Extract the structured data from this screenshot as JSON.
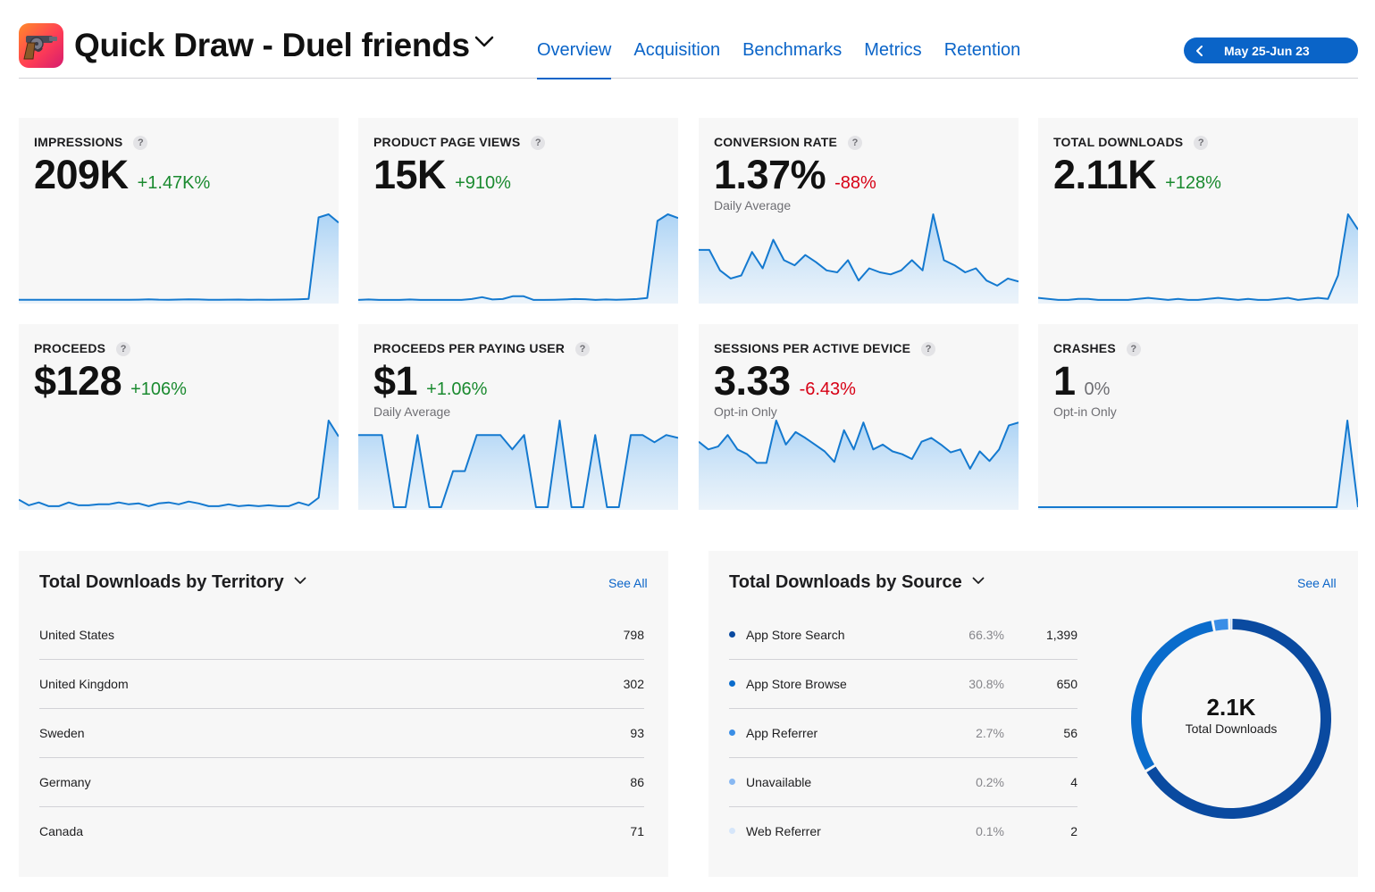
{
  "app": {
    "title": "Quick Draw - Duel friends",
    "icon": "revolver-icon"
  },
  "nav": {
    "tabs": [
      {
        "label": "Overview",
        "active": true
      },
      {
        "label": "Acquisition",
        "active": false
      },
      {
        "label": "Benchmarks",
        "active": false
      },
      {
        "label": "Metrics",
        "active": false
      },
      {
        "label": "Retention",
        "active": false
      }
    ],
    "date_range": "May 25-Jun 23"
  },
  "colors": {
    "accent": "#0a64c8",
    "positive": "#1a8a2f",
    "negative": "#d70015",
    "spark_line": "#1479cf"
  },
  "kpis": [
    {
      "title": "IMPRESSIONS",
      "value": "209K",
      "change": "+1.47K%",
      "trend": "pos",
      "sub": "",
      "series": [
        1,
        1,
        1,
        1,
        1,
        1,
        1,
        1,
        1,
        1,
        1,
        1,
        1.2,
        1.5,
        1.2,
        1.1,
        1.3,
        1.5,
        1.4,
        1.1,
        1,
        1.2,
        1.3,
        1.1,
        1.2,
        1.1,
        1.2,
        1.3,
        1.5,
        2,
        80,
        83,
        75
      ]
    },
    {
      "title": "PRODUCT PAGE VIEWS",
      "value": "15K",
      "change": "+910%",
      "trend": "pos",
      "sub": "",
      "series": [
        1,
        1.5,
        1,
        1,
        1,
        1.5,
        1,
        1,
        1,
        1,
        1,
        2,
        4,
        1.5,
        2,
        5,
        5,
        1,
        1,
        1.2,
        1.5,
        2,
        1.8,
        1,
        1.5,
        1.2,
        1.5,
        2,
        3,
        85,
        92,
        88
      ]
    },
    {
      "title": "CONVERSION RATE",
      "value": "1.37%",
      "change": "-88%",
      "trend": "neg",
      "sub": "Daily Average",
      "series": [
        50,
        50,
        30,
        22,
        25,
        48,
        32,
        60,
        40,
        35,
        45,
        38,
        30,
        28,
        40,
        20,
        32,
        28,
        26,
        30,
        40,
        30,
        85,
        40,
        35,
        28,
        32,
        20,
        15,
        22,
        19
      ]
    },
    {
      "title": "TOTAL DOWNLOADS",
      "value": "2.11K",
      "change": "+128%",
      "trend": "pos",
      "sub": "",
      "series": [
        3,
        2,
        1,
        1,
        2,
        2,
        1,
        1,
        1,
        1,
        2,
        3,
        2,
        1,
        2,
        1,
        1,
        2,
        3,
        2,
        1,
        2,
        1,
        1,
        2,
        3,
        1,
        2,
        3,
        2,
        25,
        85,
        70
      ]
    },
    {
      "title": "PROCEEDS",
      "value": "$128",
      "change": "+106%",
      "trend": "pos",
      "sub": "",
      "series": [
        8,
        2,
        5,
        1,
        1,
        5,
        2,
        2,
        3,
        3,
        5,
        3,
        4,
        1,
        4,
        5,
        3,
        6,
        4,
        1,
        1,
        3,
        1,
        2,
        1,
        2,
        1,
        1,
        5,
        2,
        10,
        92,
        75
      ]
    },
    {
      "title": "PROCEEDS PER PAYING USER",
      "value": "$1",
      "change": "+1.06%",
      "trend": "pos",
      "sub": "Daily Average",
      "series": [
        50,
        50,
        50,
        0,
        0,
        50,
        0,
        0,
        25,
        25,
        50,
        50,
        50,
        40,
        50,
        0,
        0,
        60,
        0,
        0,
        50,
        0,
        0,
        50,
        50,
        45,
        50,
        48
      ]
    },
    {
      "title": "SESSIONS PER ACTIVE DEVICE",
      "value": "3.33",
      "change": "-6.43%",
      "trend": "neg",
      "sub": "Opt-in Only",
      "series": [
        68,
        60,
        63,
        75,
        60,
        55,
        46,
        46,
        90,
        65,
        78,
        72,
        65,
        58,
        47,
        80,
        60,
        88,
        60,
        65,
        58,
        55,
        50,
        68,
        72,
        65,
        57,
        60,
        40,
        58,
        48,
        60,
        85,
        88
      ]
    },
    {
      "title": "CRASHES",
      "value": "1",
      "change": "0%",
      "trend": "neu",
      "sub": "Opt-in Only",
      "series": [
        0,
        0,
        0,
        0,
        0,
        0,
        0,
        0,
        0,
        0,
        0,
        0,
        0,
        0,
        0,
        0,
        0,
        0,
        0,
        0,
        0,
        0,
        0,
        0,
        0,
        0,
        0,
        0,
        0,
        100,
        0
      ]
    }
  ],
  "territory": {
    "title": "Total Downloads by Territory",
    "see_all": "See All",
    "rows": [
      {
        "name": "United States",
        "value": "798"
      },
      {
        "name": "United Kingdom",
        "value": "302"
      },
      {
        "name": "Sweden",
        "value": "93"
      },
      {
        "name": "Germany",
        "value": "86"
      },
      {
        "name": "Canada",
        "value": "71"
      }
    ]
  },
  "source": {
    "title": "Total Downloads by Source",
    "see_all": "See All",
    "rows": [
      {
        "name": "App Store Search",
        "pct": "66.3%",
        "value": "1,399",
        "color": "#0a4aa0"
      },
      {
        "name": "App Store Browse",
        "pct": "30.8%",
        "value": "650",
        "color": "#0a6ccc"
      },
      {
        "name": "App Referrer",
        "pct": "2.7%",
        "value": "56",
        "color": "#3a8ee6"
      },
      {
        "name": "Unavailable",
        "pct": "0.2%",
        "value": "4",
        "color": "#88b8f2"
      },
      {
        "name": "Web Referrer",
        "pct": "0.1%",
        "value": "2",
        "color": "#d6e6fa"
      }
    ],
    "donut": {
      "value": "2.1K",
      "label": "Total Downloads"
    }
  }
}
